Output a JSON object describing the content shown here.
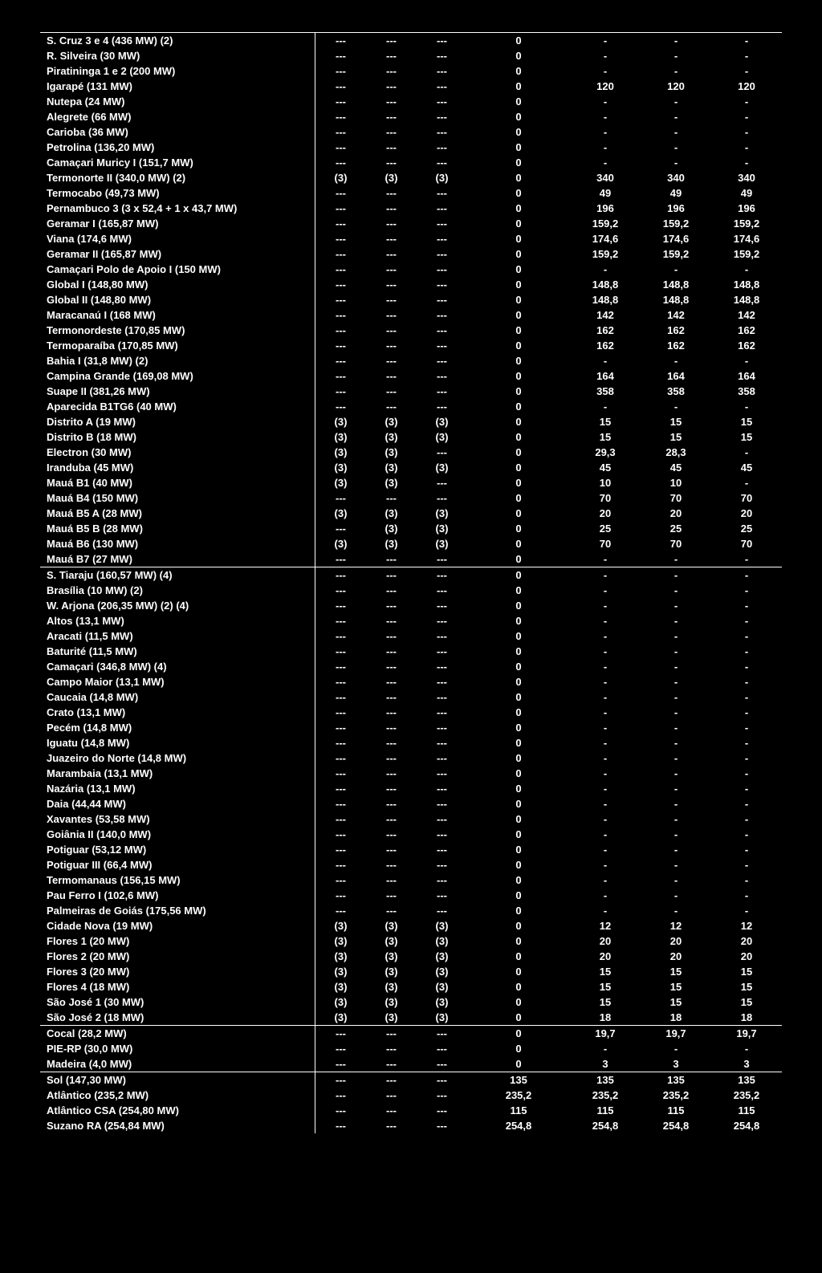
{
  "dash": "---",
  "hyph": "-",
  "groups": [
    {
      "rows": [
        {
          "name": "S. Cruz 3 e 4 (436 MW) (2)",
          "c1": "---",
          "c2": "---",
          "c3": "---",
          "c4": "0",
          "c5": "-",
          "c6": "-",
          "c7": "-"
        },
        {
          "name": "R. Silveira (30 MW)",
          "c1": "---",
          "c2": "---",
          "c3": "---",
          "c4": "0",
          "c5": "-",
          "c6": "-",
          "c7": "-"
        },
        {
          "name": "Piratininga 1 e 2 (200 MW)",
          "c1": "---",
          "c2": "---",
          "c3": "---",
          "c4": "0",
          "c5": "-",
          "c6": "-",
          "c7": "-"
        },
        {
          "name": "Igarapé (131 MW)",
          "c1": "---",
          "c2": "---",
          "c3": "---",
          "c4": "0",
          "c5": "120",
          "c6": "120",
          "c7": "120"
        },
        {
          "name": "Nutepa (24 MW)",
          "c1": "---",
          "c2": "---",
          "c3": "---",
          "c4": "0",
          "c5": "-",
          "c6": "-",
          "c7": "-"
        },
        {
          "name": "Alegrete (66 MW)",
          "c1": "---",
          "c2": "---",
          "c3": "---",
          "c4": "0",
          "c5": "-",
          "c6": "-",
          "c7": "-"
        },
        {
          "name": "Carioba (36 MW)",
          "c1": "---",
          "c2": "---",
          "c3": "---",
          "c4": "0",
          "c5": "-",
          "c6": "-",
          "c7": "-"
        },
        {
          "name": "Petrolina (136,20 MW)",
          "c1": "---",
          "c2": "---",
          "c3": "---",
          "c4": "0",
          "c5": "-",
          "c6": "-",
          "c7": "-"
        },
        {
          "name": "Camaçari Muricy I (151,7 MW)",
          "c1": "---",
          "c2": "---",
          "c3": "---",
          "c4": "0",
          "c5": "-",
          "c6": "-",
          "c7": "-"
        },
        {
          "name": "Termonorte II (340,0 MW) (2)",
          "c1": "(3)",
          "c2": "(3)",
          "c3": "(3)",
          "c4": "0",
          "c5": "340",
          "c6": "340",
          "c7": "340"
        },
        {
          "name": "Termocabo (49,73 MW)",
          "c1": "---",
          "c2": "---",
          "c3": "---",
          "c4": "0",
          "c5": "49",
          "c6": "49",
          "c7": "49"
        },
        {
          "name": "Pernambuco 3 (3 x 52,4 + 1 x 43,7 MW)",
          "c1": "---",
          "c2": "---",
          "c3": "---",
          "c4": "0",
          "c5": "196",
          "c6": "196",
          "c7": "196"
        },
        {
          "name": "Geramar I (165,87 MW)",
          "c1": "---",
          "c2": "---",
          "c3": "---",
          "c4": "0",
          "c5": "159,2",
          "c6": "159,2",
          "c7": "159,2"
        },
        {
          "name": "Viana (174,6 MW)",
          "c1": "---",
          "c2": "---",
          "c3": "---",
          "c4": "0",
          "c5": "174,6",
          "c6": "174,6",
          "c7": "174,6"
        },
        {
          "name": "Geramar II (165,87 MW)",
          "c1": "---",
          "c2": "---",
          "c3": "---",
          "c4": "0",
          "c5": "159,2",
          "c6": "159,2",
          "c7": "159,2"
        },
        {
          "name": "Camaçari Polo de Apoio I (150 MW)",
          "c1": "---",
          "c2": "---",
          "c3": "---",
          "c4": "0",
          "c5": "-",
          "c6": "-",
          "c7": "-"
        },
        {
          "name": "Global I (148,80 MW)",
          "c1": "---",
          "c2": "---",
          "c3": "---",
          "c4": "0",
          "c5": "148,8",
          "c6": "148,8",
          "c7": "148,8"
        },
        {
          "name": "Global II (148,80 MW)",
          "c1": "---",
          "c2": "---",
          "c3": "---",
          "c4": "0",
          "c5": "148,8",
          "c6": "148,8",
          "c7": "148,8"
        },
        {
          "name": "Maracanaú I (168 MW)",
          "c1": "---",
          "c2": "---",
          "c3": "---",
          "c4": "0",
          "c5": "142",
          "c6": "142",
          "c7": "142"
        },
        {
          "name": "Termonordeste (170,85 MW)",
          "c1": "---",
          "c2": "---",
          "c3": "---",
          "c4": "0",
          "c5": "162",
          "c6": "162",
          "c7": "162"
        },
        {
          "name": "Termoparaíba (170,85 MW)",
          "c1": "---",
          "c2": "---",
          "c3": "---",
          "c4": "0",
          "c5": "162",
          "c6": "162",
          "c7": "162"
        },
        {
          "name": "Bahia I (31,8 MW) (2)",
          "c1": "---",
          "c2": "---",
          "c3": "---",
          "c4": "0",
          "c5": "-",
          "c6": "-",
          "c7": "-"
        },
        {
          "name": "Campina Grande (169,08 MW)",
          "c1": "---",
          "c2": "---",
          "c3": "---",
          "c4": "0",
          "c5": "164",
          "c6": "164",
          "c7": "164"
        },
        {
          "name": "Suape II (381,26 MW)",
          "c1": "---",
          "c2": "---",
          "c3": "---",
          "c4": "0",
          "c5": "358",
          "c6": "358",
          "c7": "358"
        },
        {
          "name": "Aparecida B1TG6 (40 MW)",
          "c1": "---",
          "c2": "---",
          "c3": "---",
          "c4": "0",
          "c5": "-",
          "c6": "-",
          "c7": "-"
        },
        {
          "name": "Distrito A (19 MW)",
          "c1": "(3)",
          "c2": "(3)",
          "c3": "(3)",
          "c4": "0",
          "c5": "15",
          "c6": "15",
          "c7": "15"
        },
        {
          "name": "Distrito B (18 MW)",
          "c1": "(3)",
          "c2": "(3)",
          "c3": "(3)",
          "c4": "0",
          "c5": "15",
          "c6": "15",
          "c7": "15"
        },
        {
          "name": "Electron (30 MW)",
          "c1": "(3)",
          "c2": "(3)",
          "c3": "---",
          "c4": "0",
          "c5": "29,3",
          "c6": "28,3",
          "c7": "-"
        },
        {
          "name": "Iranduba (45 MW)",
          "c1": "(3)",
          "c2": "(3)",
          "c3": "(3)",
          "c4": "0",
          "c5": "45",
          "c6": "45",
          "c7": "45"
        },
        {
          "name": "Mauá B1 (40 MW)",
          "c1": "(3)",
          "c2": "(3)",
          "c3": "---",
          "c4": "0",
          "c5": "10",
          "c6": "10",
          "c7": "-"
        },
        {
          "name": "Mauá B4 (150 MW)",
          "c1": "---",
          "c2": "---",
          "c3": "---",
          "c4": "0",
          "c5": "70",
          "c6": "70",
          "c7": "70"
        },
        {
          "name": "Mauá B5 A (28 MW)",
          "c1": "(3)",
          "c2": "(3)",
          "c3": "(3)",
          "c4": "0",
          "c5": "20",
          "c6": "20",
          "c7": "20"
        },
        {
          "name": "Mauá B5 B (28 MW)",
          "c1": "---",
          "c2": "(3)",
          "c3": "(3)",
          "c4": "0",
          "c5": "25",
          "c6": "25",
          "c7": "25"
        },
        {
          "name": "Mauá B6 (130 MW)",
          "c1": "(3)",
          "c2": "(3)",
          "c3": "(3)",
          "c4": "0",
          "c5": "70",
          "c6": "70",
          "c7": "70"
        },
        {
          "name": "Mauá B7 (27 MW)",
          "c1": "---",
          "c2": "---",
          "c3": "---",
          "c4": "0",
          "c5": "-",
          "c6": "-",
          "c7": "-"
        }
      ]
    },
    {
      "rows": [
        {
          "name": "S. Tiaraju (160,57 MW) (4)",
          "c1": "---",
          "c2": "---",
          "c3": "---",
          "c4": "0",
          "c5": "-",
          "c6": "-",
          "c7": "-"
        },
        {
          "name": "Brasília (10 MW) (2)",
          "c1": "---",
          "c2": "---",
          "c3": "---",
          "c4": "0",
          "c5": "-",
          "c6": "-",
          "c7": "-"
        },
        {
          "name": "W. Arjona (206,35 MW) (2) (4)",
          "c1": "---",
          "c2": "---",
          "c3": "---",
          "c4": "0",
          "c5": "-",
          "c6": "-",
          "c7": "-"
        },
        {
          "name": "Altos (13,1 MW)",
          "c1": "---",
          "c2": "---",
          "c3": "---",
          "c4": "0",
          "c5": "-",
          "c6": "-",
          "c7": "-"
        },
        {
          "name": "Aracati (11,5 MW)",
          "c1": "---",
          "c2": "---",
          "c3": "---",
          "c4": "0",
          "c5": "-",
          "c6": "-",
          "c7": "-"
        },
        {
          "name": "Baturité (11,5 MW)",
          "c1": "---",
          "c2": "---",
          "c3": "---",
          "c4": "0",
          "c5": "-",
          "c6": "-",
          "c7": "-"
        },
        {
          "name": "Camaçari (346,8 MW) (4)",
          "c1": "---",
          "c2": "---",
          "c3": "---",
          "c4": "0",
          "c5": "-",
          "c6": "-",
          "c7": "-"
        },
        {
          "name": "Campo Maior (13,1 MW)",
          "c1": "---",
          "c2": "---",
          "c3": "---",
          "c4": "0",
          "c5": "-",
          "c6": "-",
          "c7": "-"
        },
        {
          "name": "Caucaia (14,8 MW)",
          "c1": "---",
          "c2": "---",
          "c3": "---",
          "c4": "0",
          "c5": "-",
          "c6": "-",
          "c7": "-"
        },
        {
          "name": "Crato (13,1 MW)",
          "c1": "---",
          "c2": "---",
          "c3": "---",
          "c4": "0",
          "c5": "-",
          "c6": "-",
          "c7": "-"
        },
        {
          "name": "Pecém (14,8 MW)",
          "c1": "---",
          "c2": "---",
          "c3": "---",
          "c4": "0",
          "c5": "-",
          "c6": "-",
          "c7": "-"
        },
        {
          "name": "Iguatu (14,8 MW)",
          "c1": "---",
          "c2": "---",
          "c3": "---",
          "c4": "0",
          "c5": "-",
          "c6": "-",
          "c7": "-"
        },
        {
          "name": "Juazeiro do Norte (14,8 MW)",
          "c1": "---",
          "c2": "---",
          "c3": "---",
          "c4": "0",
          "c5": "-",
          "c6": "-",
          "c7": "-"
        },
        {
          "name": "Marambaia (13,1 MW)",
          "c1": "---",
          "c2": "---",
          "c3": "---",
          "c4": "0",
          "c5": "-",
          "c6": "-",
          "c7": "-"
        },
        {
          "name": "Nazária (13,1 MW)",
          "c1": "---",
          "c2": "---",
          "c3": "---",
          "c4": "0",
          "c5": "-",
          "c6": "-",
          "c7": "-"
        },
        {
          "name": "Daia (44,44 MW)",
          "c1": "---",
          "c2": "---",
          "c3": "---",
          "c4": "0",
          "c5": "-",
          "c6": "-",
          "c7": "-"
        },
        {
          "name": "Xavantes (53,58 MW)",
          "c1": "---",
          "c2": "---",
          "c3": "---",
          "c4": "0",
          "c5": "-",
          "c6": "-",
          "c7": "-"
        },
        {
          "name": "Goiânia II (140,0 MW)",
          "c1": "---",
          "c2": "---",
          "c3": "---",
          "c4": "0",
          "c5": "-",
          "c6": "-",
          "c7": "-"
        },
        {
          "name": "Potiguar (53,12 MW)",
          "c1": "---",
          "c2": "---",
          "c3": "---",
          "c4": "0",
          "c5": "-",
          "c6": "-",
          "c7": "-"
        },
        {
          "name": "Potiguar III (66,4 MW)",
          "c1": "---",
          "c2": "---",
          "c3": "---",
          "c4": "0",
          "c5": "-",
          "c6": "-",
          "c7": "-"
        },
        {
          "name": "Termomanaus (156,15 MW)",
          "c1": "---",
          "c2": "---",
          "c3": "---",
          "c4": "0",
          "c5": "-",
          "c6": "-",
          "c7": "-"
        },
        {
          "name": "Pau Ferro I (102,6 MW)",
          "c1": "---",
          "c2": "---",
          "c3": "---",
          "c4": "0",
          "c5": "-",
          "c6": "-",
          "c7": "-"
        },
        {
          "name": "Palmeiras de Goiás (175,56 MW)",
          "c1": "---",
          "c2": "---",
          "c3": "---",
          "c4": "0",
          "c5": "-",
          "c6": "-",
          "c7": "-"
        },
        {
          "name": "Cidade Nova (19 MW)",
          "c1": "(3)",
          "c2": "(3)",
          "c3": "(3)",
          "c4": "0",
          "c5": "12",
          "c6": "12",
          "c7": "12"
        },
        {
          "name": "Flores 1 (20 MW)",
          "c1": "(3)",
          "c2": "(3)",
          "c3": "(3)",
          "c4": "0",
          "c5": "20",
          "c6": "20",
          "c7": "20"
        },
        {
          "name": "Flores 2 (20 MW)",
          "c1": "(3)",
          "c2": "(3)",
          "c3": "(3)",
          "c4": "0",
          "c5": "20",
          "c6": "20",
          "c7": "20"
        },
        {
          "name": "Flores 3 (20 MW)",
          "c1": "(3)",
          "c2": "(3)",
          "c3": "(3)",
          "c4": "0",
          "c5": "15",
          "c6": "15",
          "c7": "15"
        },
        {
          "name": "Flores 4 (18 MW)",
          "c1": "(3)",
          "c2": "(3)",
          "c3": "(3)",
          "c4": "0",
          "c5": "15",
          "c6": "15",
          "c7": "15"
        },
        {
          "name": "São José 1 (30 MW)",
          "c1": "(3)",
          "c2": "(3)",
          "c3": "(3)",
          "c4": "0",
          "c5": "15",
          "c6": "15",
          "c7": "15"
        },
        {
          "name": "São José 2 (18 MW)",
          "c1": "(3)",
          "c2": "(3)",
          "c3": "(3)",
          "c4": "0",
          "c5": "18",
          "c6": "18",
          "c7": "18"
        }
      ]
    },
    {
      "rows": [
        {
          "name": "Cocal (28,2 MW)",
          "c1": "---",
          "c2": "---",
          "c3": "---",
          "c4": "0",
          "c5": "19,7",
          "c6": "19,7",
          "c7": "19,7"
        },
        {
          "name": "PIE-RP (30,0 MW)",
          "c1": "---",
          "c2": "---",
          "c3": "---",
          "c4": "0",
          "c5": "-",
          "c6": "-",
          "c7": "-"
        },
        {
          "name": "Madeira (4,0 MW)",
          "c1": "---",
          "c2": "---",
          "c3": "---",
          "c4": "0",
          "c5": "3",
          "c6": "3",
          "c7": "3"
        }
      ]
    },
    {
      "rows": [
        {
          "name": "Sol (147,30 MW)",
          "c1": "---",
          "c2": "---",
          "c3": "---",
          "c4": "135",
          "c5": "135",
          "c6": "135",
          "c7": "135"
        },
        {
          "name": "Atlântico (235,2 MW)",
          "c1": "---",
          "c2": "---",
          "c3": "---",
          "c4": "235,2",
          "c5": "235,2",
          "c6": "235,2",
          "c7": "235,2"
        },
        {
          "name": "Atlântico CSA (254,80 MW)",
          "c1": "---",
          "c2": "---",
          "c3": "---",
          "c4": "115",
          "c5": "115",
          "c6": "115",
          "c7": "115"
        },
        {
          "name": "Suzano RA (254,84 MW)",
          "c1": "---",
          "c2": "---",
          "c3": "---",
          "c4": "254,8",
          "c5": "254,8",
          "c6": "254,8",
          "c7": "254,8"
        }
      ]
    }
  ]
}
